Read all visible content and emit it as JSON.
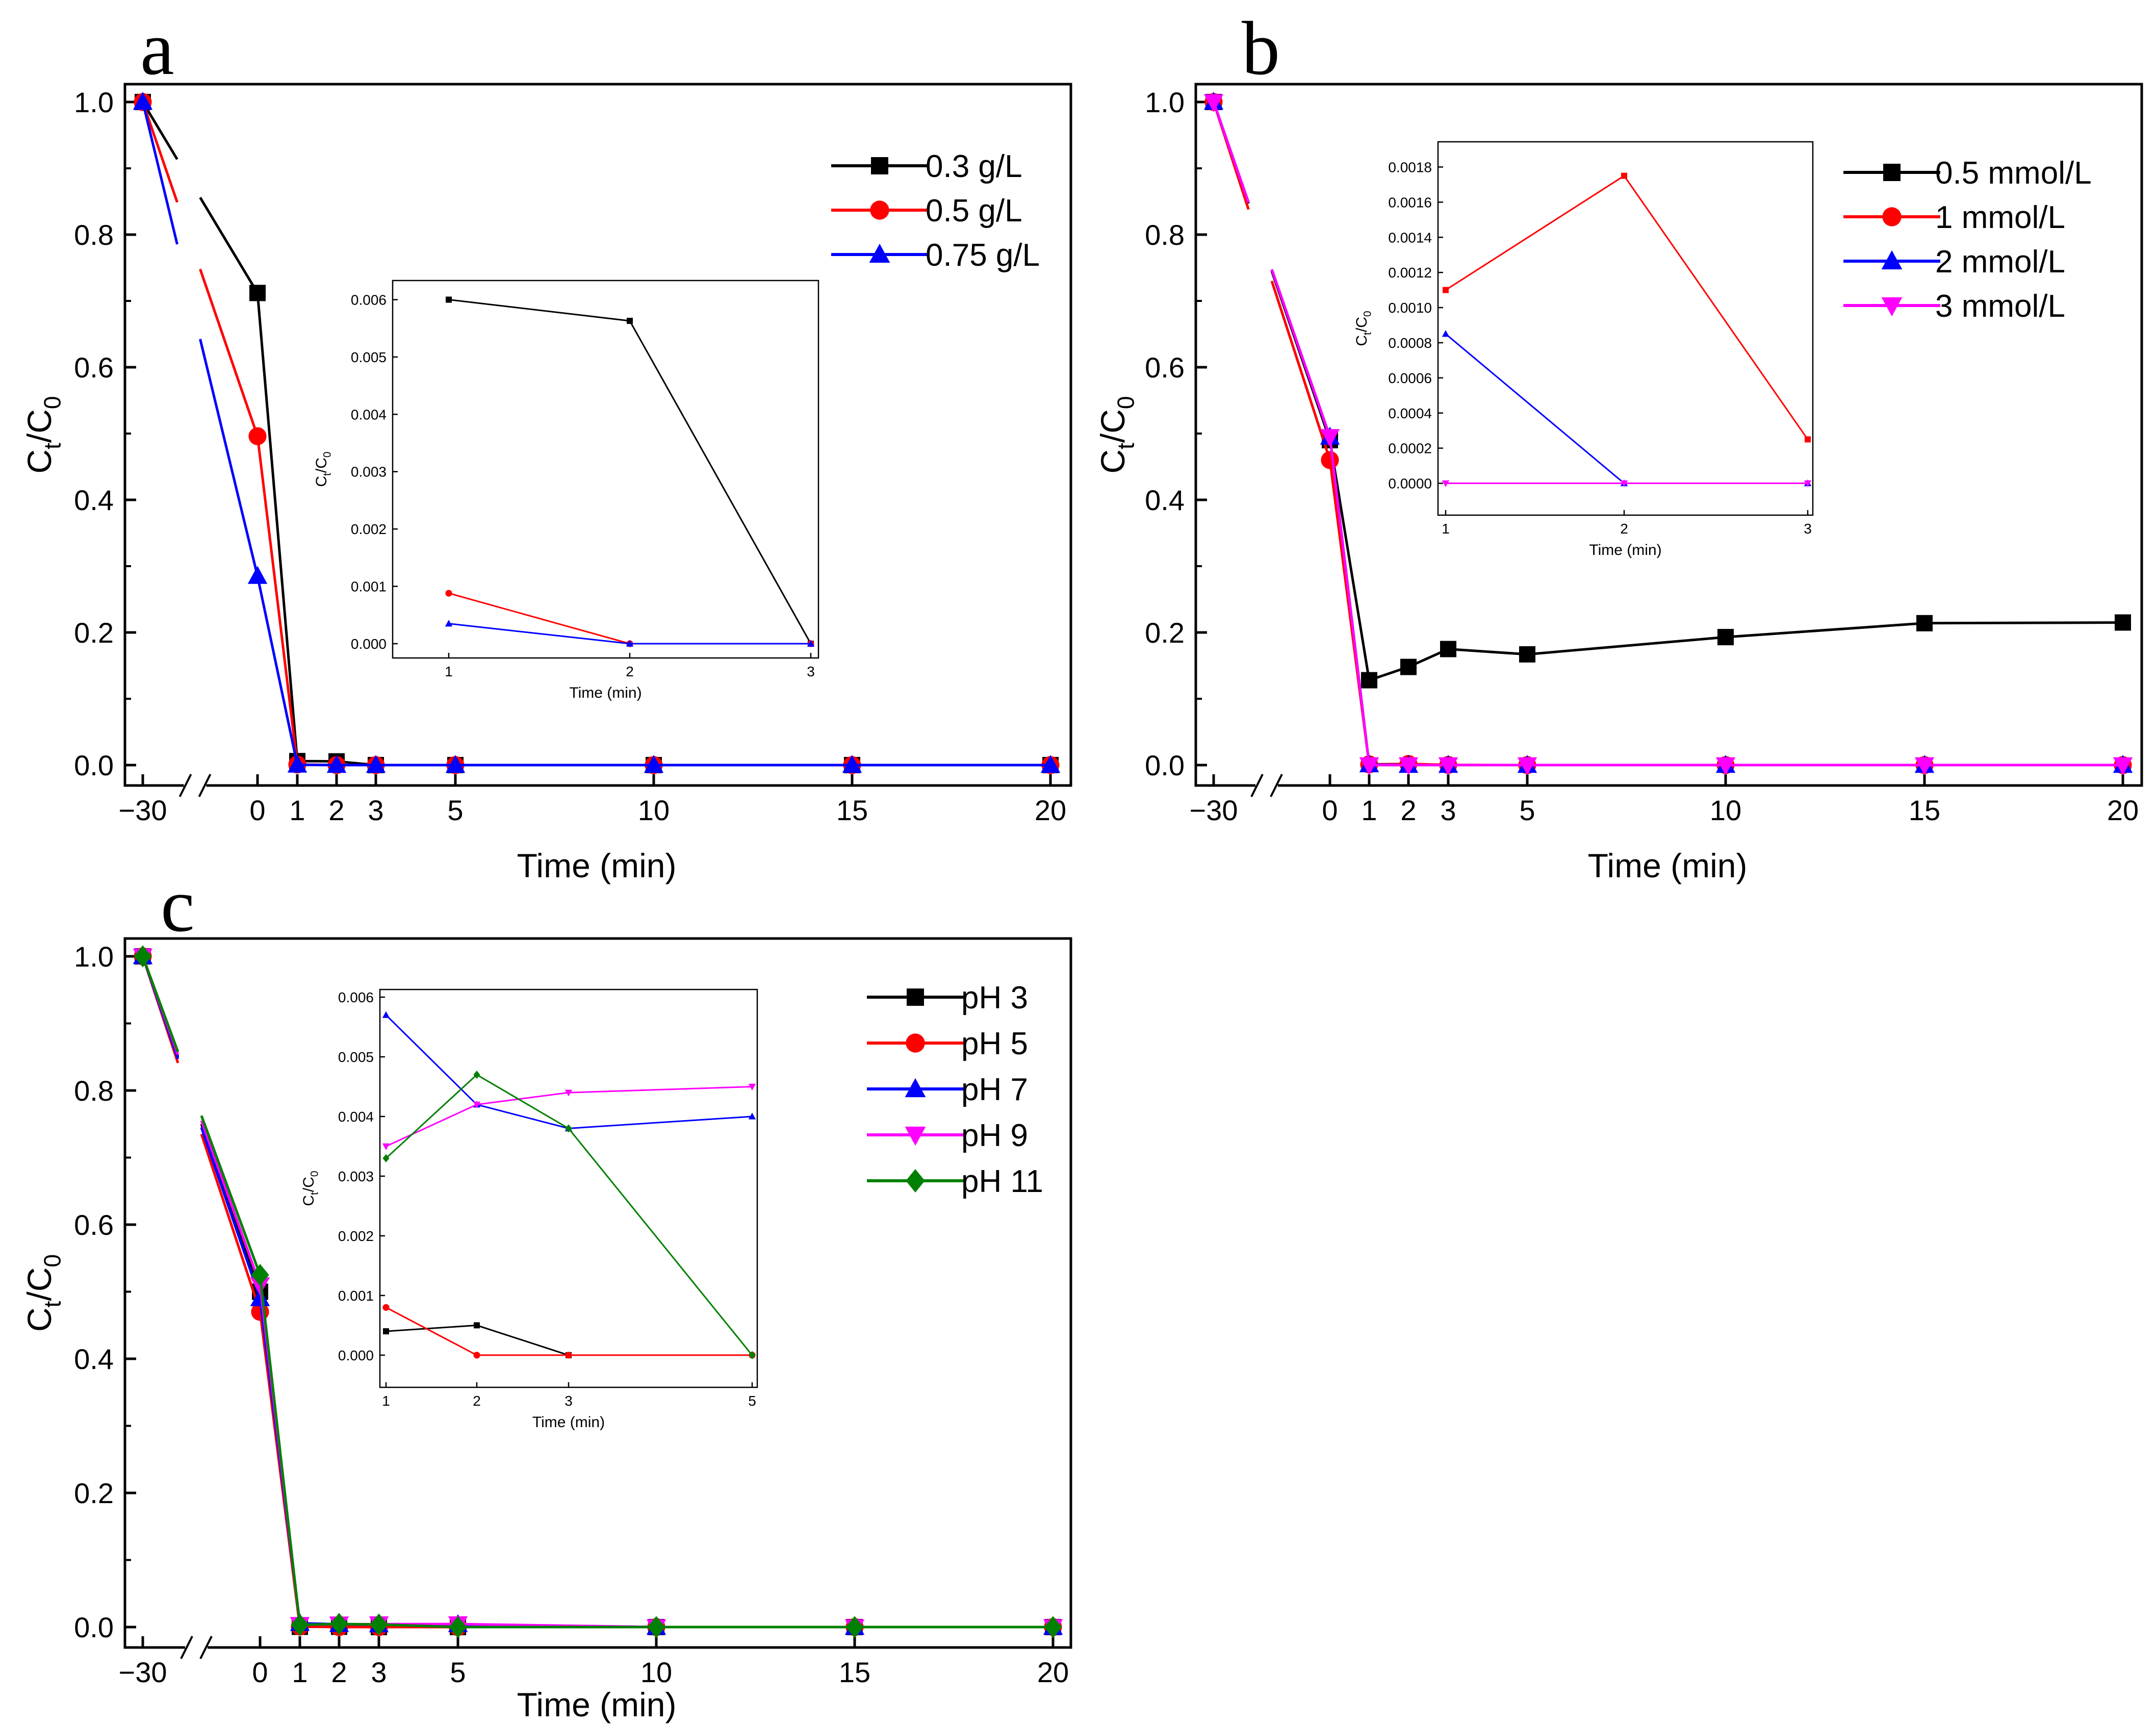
{
  "chart_data": [
    {
      "panel": "a",
      "type": "line",
      "xlabel": "Time (min)",
      "ylabel": "Ct/C0",
      "x": [
        -30,
        0,
        1,
        2,
        3,
        5,
        10,
        15,
        20
      ],
      "xticks": [
        -30,
        0,
        1,
        2,
        3,
        5,
        10,
        15,
        20
      ],
      "ylim": [
        0,
        1.0
      ],
      "yticks": [
        "0.0",
        "0.2",
        "0.4",
        "0.6",
        "0.8",
        "1.0"
      ],
      "legend_position": "top-right",
      "series": [
        {
          "name": "0.3 g/L",
          "color": "#000000",
          "marker": "square",
          "values": [
            1.0,
            0.712,
            0.006,
            0.0056,
            0.0,
            0.0,
            0.0,
            0.0,
            0.0
          ]
        },
        {
          "name": "0.5 g/L",
          "color": "#ff0000",
          "marker": "circle",
          "values": [
            1.0,
            0.496,
            0.0009,
            0.0,
            0.0,
            0.0,
            0.0,
            0.0,
            0.0
          ]
        },
        {
          "name": "0.75 g/L",
          "color": "#0000ff",
          "marker": "triangle-up",
          "values": [
            1.0,
            0.285,
            0.00035,
            0.0,
            0.0,
            0.0,
            0.0,
            0.0,
            0.0
          ]
        }
      ],
      "inset": {
        "xlabel": "Time (min)",
        "ylabel": "Ct/C0",
        "x": [
          1,
          2,
          3
        ],
        "xticks": [
          "1",
          "2",
          "3"
        ],
        "ylim": [
          0,
          0.0062
        ],
        "yticks": [
          "0.000",
          "0.001",
          "0.002",
          "0.003",
          "0.004",
          "0.005",
          "0.006"
        ],
        "series": [
          {
            "name": "0.3 g/L",
            "color": "#000000",
            "marker": "square",
            "values": [
              0.006,
              0.00563,
              0.0
            ]
          },
          {
            "name": "0.5 g/L",
            "color": "#ff0000",
            "marker": "circle",
            "values": [
              0.00088,
              0.0,
              0.0
            ]
          },
          {
            "name": "0.75 g/L",
            "color": "#0000ff",
            "marker": "triangle-up",
            "values": [
              0.00035,
              0.0,
              0.0
            ]
          }
        ]
      }
    },
    {
      "panel": "b",
      "type": "line",
      "xlabel": "Time (min)",
      "ylabel": "Ct/C0",
      "x": [
        -30,
        0,
        1,
        2,
        3,
        5,
        10,
        15,
        20
      ],
      "xticks": [
        -30,
        0,
        1,
        2,
        3,
        5,
        10,
        15,
        20
      ],
      "ylim": [
        0,
        1.0
      ],
      "yticks": [
        "0.0",
        "0.2",
        "0.4",
        "0.6",
        "0.8",
        "1.0"
      ],
      "legend_position": "top-right",
      "series": [
        {
          "name": "0.5 mmol/L",
          "color": "#000000",
          "marker": "square",
          "values": [
            1.0,
            0.49,
            0.128,
            0.148,
            0.175,
            0.167,
            0.193,
            0.214,
            0.215
          ]
        },
        {
          "name": "1 mmol/L",
          "color": "#ff0000",
          "marker": "circle",
          "values": [
            1.0,
            0.46,
            0.0011,
            0.00175,
            0.00025,
            0.0,
            0.0,
            0.0,
            0.0
          ]
        },
        {
          "name": "2 mmol/L",
          "color": "#0000ff",
          "marker": "triangle-up",
          "values": [
            1.0,
            0.495,
            0.00085,
            0.0,
            0.0,
            0.0,
            0.0,
            0.0,
            0.0
          ]
        },
        {
          "name": "3 mmol/L",
          "color": "#ff00ff",
          "marker": "triangle-down",
          "values": [
            1.0,
            0.495,
            0.0,
            0.0,
            0.0,
            0.0,
            0.0,
            0.0,
            0.0
          ]
        }
      ],
      "inset": {
        "xlabel": "Time (min)",
        "ylabel": "Ct/C0",
        "x": [
          1,
          2,
          3
        ],
        "xticks": [
          "1",
          "2",
          "3"
        ],
        "ylim": [
          -0.0001,
          0.0019
        ],
        "yticks": [
          "0.0000",
          "0.0002",
          "0.0004",
          "0.0006",
          "0.0008",
          "0.0010",
          "0.0012",
          "0.0014",
          "0.0016",
          "0.0018"
        ],
        "series": [
          {
            "name": "1 mmol/L",
            "color": "#ff0000",
            "marker": "square",
            "values": [
              0.0011,
              0.00175,
              0.00025
            ]
          },
          {
            "name": "2 mmol/L",
            "color": "#0000ff",
            "marker": "triangle-up",
            "values": [
              0.00085,
              0.0,
              0.0
            ]
          },
          {
            "name": "3 mmol/L",
            "color": "#ff00ff",
            "marker": "triangle-down",
            "values": [
              0.0,
              0.0,
              0.0
            ]
          }
        ]
      }
    },
    {
      "panel": "c",
      "type": "line",
      "xlabel": "Time (min)",
      "ylabel": "Ct/C0",
      "x": [
        -30,
        0,
        1,
        2,
        3,
        5,
        10,
        15,
        20
      ],
      "xticks": [
        -30,
        0,
        1,
        2,
        3,
        5,
        10,
        15,
        20
      ],
      "ylim": [
        0,
        1.0
      ],
      "yticks": [
        "0.0",
        "0.2",
        "0.4",
        "0.6",
        "0.8",
        "1.0"
      ],
      "legend_position": "top-right",
      "series": [
        {
          "name": "pH 3",
          "color": "#000000",
          "marker": "square",
          "values": [
            1.0,
            0.5,
            0.0004,
            0.0005,
            0.0,
            0.0,
            0.0,
            0.0,
            0.0
          ]
        },
        {
          "name": "pH 5",
          "color": "#ff0000",
          "marker": "circle",
          "values": [
            1.0,
            0.47,
            0.0008,
            0.0,
            0.0,
            0.0,
            0.0,
            0.0,
            0.0
          ]
        },
        {
          "name": "pH 7",
          "color": "#0000ff",
          "marker": "triangle-up",
          "values": [
            1.0,
            0.49,
            0.0057,
            0.0042,
            0.0038,
            0.004,
            0.0,
            0.0,
            0.0
          ]
        },
        {
          "name": "pH 9",
          "color": "#ff00ff",
          "marker": "triangle-down",
          "values": [
            1.0,
            0.51,
            0.0035,
            0.0042,
            0.0044,
            0.0045,
            0.0,
            0.0,
            0.0
          ]
        },
        {
          "name": "pH 11",
          "color": "#008000",
          "marker": "diamond",
          "values": [
            1.0,
            0.525,
            0.0033,
            0.0047,
            0.0038,
            0.0,
            0.0,
            0.0,
            0.0
          ]
        }
      ],
      "inset": {
        "xlabel": "Time (min)",
        "ylabel": "Ct/C0",
        "x": [
          1,
          2,
          3,
          5
        ],
        "xticks": [
          "1",
          "2",
          "3",
          "5"
        ],
        "ylim": [
          -0.0003,
          0.006
        ],
        "yticks": [
          "0.000",
          "0.001",
          "0.002",
          "0.003",
          "0.004",
          "0.005",
          "0.006"
        ],
        "series": [
          {
            "name": "pH 3",
            "color": "#000000",
            "marker": "square",
            "values": [
              0.0004,
              0.0005,
              0.0,
              null
            ]
          },
          {
            "name": "pH 5",
            "color": "#ff0000",
            "marker": "circle",
            "values": [
              0.0008,
              0.0,
              0.0,
              0.0
            ]
          },
          {
            "name": "pH 7",
            "color": "#0000ff",
            "marker": "triangle-up",
            "values": [
              0.0057,
              0.0042,
              0.0038,
              0.004
            ]
          },
          {
            "name": "pH 9",
            "color": "#ff00ff",
            "marker": "triangle-down",
            "values": [
              0.0035,
              0.0042,
              0.0044,
              0.0045
            ]
          },
          {
            "name": "pH 11",
            "color": "#008000",
            "marker": "diamond",
            "values": [
              0.0033,
              0.0047,
              0.0038,
              0.0
            ]
          }
        ]
      }
    }
  ]
}
